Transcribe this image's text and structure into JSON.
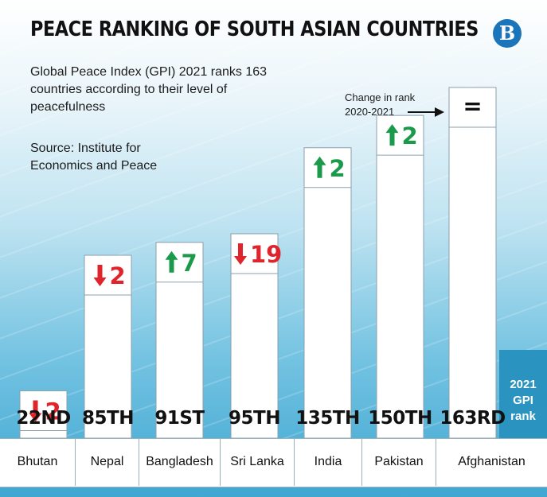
{
  "header": {
    "title": "PEACE RANKING OF SOUTH ASIAN COUNTRIES",
    "logo_text": "B",
    "subtitle": "Global Peace Index (GPI) 2021 ranks 163 countries according to their level of peacefulness",
    "source": "Source: Institute for Economics and Peace"
  },
  "annotation": {
    "line1": "Change in rank",
    "line2": "2020-2021"
  },
  "gpi_rank_label": [
    "2021",
    "GPI",
    "rank"
  ],
  "colors": {
    "up": "#1a9a4a",
    "down": "#e0242b",
    "bar": "#ffffff",
    "bar_border": "#8aa0ae"
  },
  "chart_data": {
    "type": "bar",
    "categories": [
      "Bhutan",
      "Nepal",
      "Bangladesh",
      "Sri Lanka",
      "India",
      "Pakistan",
      "Afghanistan"
    ],
    "values": [
      22,
      85,
      91,
      95,
      135,
      150,
      163
    ],
    "rank_labels": [
      "22ND",
      "85TH",
      "91ST",
      "95TH",
      "135TH",
      "150TH",
      "163RD"
    ],
    "rank_change": [
      {
        "direction": "down",
        "text": "2"
      },
      {
        "direction": "down",
        "text": "2"
      },
      {
        "direction": "up",
        "text": "7"
      },
      {
        "direction": "down",
        "text": "19"
      },
      {
        "direction": "up",
        "text": "2"
      },
      {
        "direction": "up",
        "text": "2"
      },
      {
        "direction": "same",
        "text": "="
      }
    ],
    "ylim": [
      0,
      163
    ],
    "grid": false,
    "title": "PEACE RANKING OF SOUTH ASIAN COUNTRIES",
    "xlabel": "",
    "ylabel": ""
  }
}
